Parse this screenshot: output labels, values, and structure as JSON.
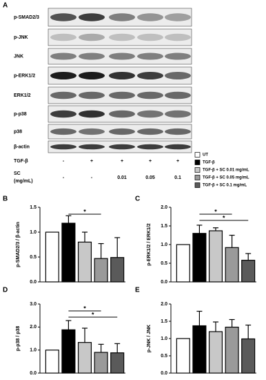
{
  "panel_a": {
    "label": "A",
    "blots": [
      "p-SMAD2/3",
      "p-JNK",
      "JNK",
      "p-ERK1/2",
      "ERK1/2",
      "p-p38",
      "p38",
      "β-actin"
    ],
    "rows": [
      {
        "label": "TGF-β",
        "values": [
          "-",
          "+",
          "+",
          "+",
          "+"
        ]
      },
      {
        "label": "SC",
        "unit": "(mg/mL)",
        "values": [
          "-",
          "-",
          "0.01",
          "0.05",
          "0.1"
        ]
      }
    ],
    "legend": [
      {
        "label": "UT",
        "color": "#ffffff"
      },
      {
        "label": "TGF-β",
        "color": "#000000"
      },
      {
        "label": "TGF-β + SC 0.01 mg/mL",
        "color": "#c8c8c8"
      },
      {
        "label": "TGF-β + SC 0.05 mg/mL",
        "color": "#9a9a9a"
      },
      {
        "label": "TGF-β + SC 0.1 mg/mL",
        "color": "#5a5a5a"
      }
    ]
  },
  "chart_data": [
    {
      "type": "bar",
      "panel": "B",
      "ylabel": "p-SMAD2/3 / β-actin",
      "categories": [
        null,
        null,
        null,
        null,
        null
      ],
      "values": [
        1.0,
        1.18,
        0.8,
        0.47,
        0.49
      ],
      "errors": [
        0,
        0.15,
        0.2,
        0.3,
        0.4
      ],
      "colors": [
        "#ffffff",
        "#000000",
        "#c8c8c8",
        "#9a9a9a",
        "#5a5a5a"
      ],
      "ylim": [
        0,
        1.5
      ],
      "yticks": [
        {
          "value": 0,
          "label": "0.0"
        },
        0.5,
        {
          "value": 1,
          "label": "1.0"
        },
        1.5
      ],
      "annotations": [
        {
          "label": "*",
          "start": 1,
          "end": 3
        }
      ]
    },
    {
      "type": "bar",
      "panel": "C",
      "ylabel": "p-ERK1/2 / ERK1/2",
      "categories": [
        null,
        null,
        null,
        null,
        null
      ],
      "values": [
        1.0,
        1.3,
        1.37,
        0.92,
        0.58
      ],
      "errors": [
        0,
        0.22,
        0.08,
        0.33,
        0.18
      ],
      "colors": [
        "#ffffff",
        "#000000",
        "#c8c8c8",
        "#9a9a9a",
        "#5a5a5a"
      ],
      "ylim": [
        0,
        2
      ],
      "yticks": [
        {
          "value": 0,
          "label": "0.0"
        },
        0.5,
        {
          "value": 1,
          "label": "1.0"
        },
        1.5,
        {
          "value": 2,
          "label": "2.0"
        }
      ],
      "annotations": [
        {
          "label": "*",
          "start": 1,
          "end": 3
        },
        {
          "label": "*",
          "start": 1,
          "end": 4
        }
      ]
    },
    {
      "type": "bar",
      "panel": "D",
      "ylabel": "p-p38 / p38",
      "categories": [
        null,
        null,
        null,
        null,
        null
      ],
      "values": [
        1.0,
        1.88,
        1.33,
        0.9,
        0.88
      ],
      "errors": [
        0,
        0.4,
        0.62,
        0.35,
        0.4
      ],
      "colors": [
        "#ffffff",
        "#000000",
        "#c8c8c8",
        "#9a9a9a",
        "#5a5a5a"
      ],
      "ylim": [
        0,
        3
      ],
      "yticks": [
        {
          "value": 0,
          "label": "0.0"
        },
        {
          "value": 1,
          "label": "1.0"
        },
        {
          "value": 2,
          "label": "2.0"
        },
        {
          "value": 3,
          "label": "3.0"
        }
      ],
      "annotations": [
        {
          "label": "*",
          "start": 1,
          "end": 3
        },
        {
          "label": "*",
          "start": 1,
          "end": 4
        }
      ]
    },
    {
      "type": "bar",
      "panel": "E",
      "ylabel": "p-JNK / JNK",
      "categories": [
        null,
        null,
        null,
        null,
        null
      ],
      "values": [
        1.0,
        1.37,
        1.2,
        1.33,
        0.99
      ],
      "errors": [
        0,
        0.42,
        0.28,
        0.22,
        0.4
      ],
      "colors": [
        "#ffffff",
        "#000000",
        "#c8c8c8",
        "#9a9a9a",
        "#5a5a5a"
      ],
      "ylim": [
        0,
        2
      ],
      "yticks": [
        {
          "value": 0,
          "label": "0.0"
        },
        0.5,
        {
          "value": 1,
          "label": "1.0"
        },
        1.5,
        {
          "value": 2,
          "label": "2.0"
        }
      ],
      "annotations": []
    }
  ]
}
